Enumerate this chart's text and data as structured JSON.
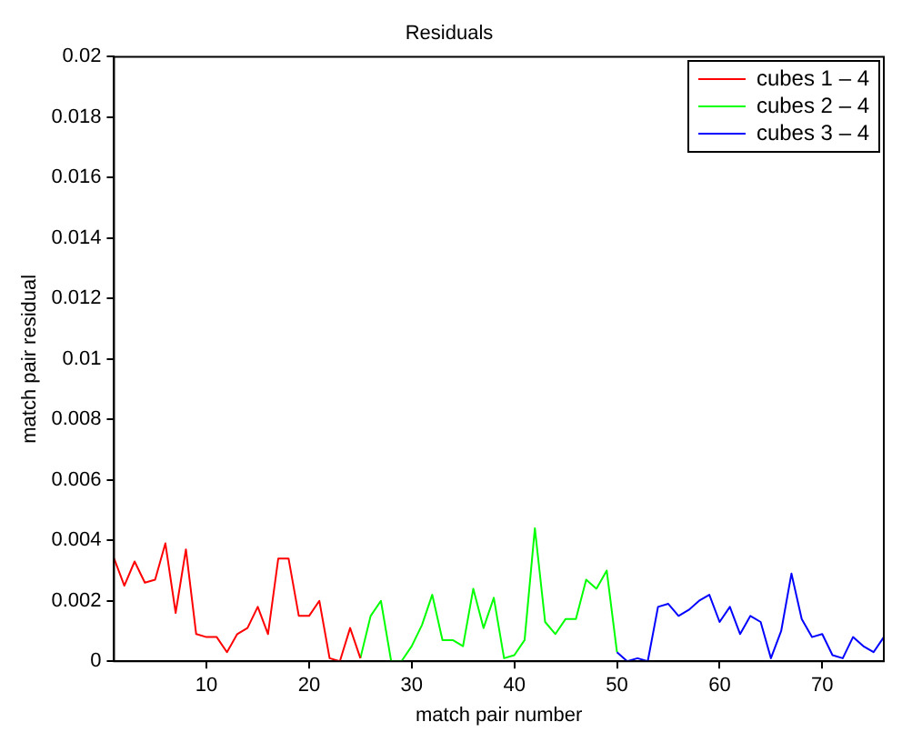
{
  "chart_data": {
    "type": "line",
    "title": "Residuals",
    "xlabel": "match pair number",
    "ylabel": "match pair residual",
    "xlim": [
      1,
      76
    ],
    "xticks": [
      10,
      20,
      30,
      40,
      50,
      60,
      70
    ],
    "ylim": [
      0,
      0.02
    ],
    "yticks": [
      0,
      0.002,
      0.004,
      0.006,
      0.008,
      0.01,
      0.012,
      0.014,
      0.016,
      0.018,
      0.02
    ],
    "grid": false,
    "legend": "top right",
    "marker": "none",
    "line_style": "solid",
    "series": [
      {
        "name": "cubes 1 – 4",
        "color": "#ff0000",
        "x": [
          1,
          2,
          3,
          4,
          5,
          6,
          7,
          8,
          9,
          10,
          11,
          12,
          13,
          14,
          15,
          16,
          17,
          18,
          19,
          20,
          21,
          22,
          23,
          24,
          25
        ],
        "values": [
          0.0034,
          0.0025,
          0.0033,
          0.0026,
          0.0027,
          0.0039,
          0.0016,
          0.0037,
          0.0009,
          0.0008,
          0.0008,
          0.0003,
          0.0009,
          0.0011,
          0.0018,
          0.0009,
          0.0034,
          0.0034,
          0.0015,
          0.0015,
          0.002,
          0.0001,
          0,
          0.0011,
          0.0001
        ]
      },
      {
        "name": "cubes 2 – 4",
        "color": "#00ff00",
        "x": [
          25,
          26,
          27,
          28,
          29,
          30,
          31,
          32,
          33,
          34,
          35,
          36,
          37,
          38,
          39,
          40,
          41,
          42,
          43,
          44,
          45,
          46,
          47,
          48,
          49,
          50
        ],
        "values": [
          0.0001,
          0.0015,
          0.002,
          0,
          0,
          0.0005,
          0.0012,
          0.0022,
          0.0007,
          0.0007,
          0.0005,
          0.0024,
          0.0011,
          0.0021,
          0.0001,
          0.0002,
          0.0007,
          0.0044,
          0.0013,
          0.0009,
          0.0014,
          0.0014,
          0.0027,
          0.0024,
          0.003,
          0.0003
        ]
      },
      {
        "name": "cubes 3 – 4",
        "color": "#0000ff",
        "x": [
          50,
          51,
          52,
          53,
          54,
          55,
          56,
          57,
          58,
          59,
          60,
          61,
          62,
          63,
          64,
          65,
          66,
          67,
          68,
          69,
          70,
          71,
          72,
          73,
          74,
          75,
          76
        ],
        "values": [
          0.0003,
          0,
          0.0001,
          0,
          0.0018,
          0.0019,
          0.0015,
          0.0017,
          0.002,
          0.0022,
          0.0013,
          0.0018,
          0.0009,
          0.0015,
          0.0013,
          0.0001,
          0.001,
          0.0029,
          0.0014,
          0.0008,
          0.0009,
          0.0002,
          0.0001,
          0.0008,
          0.0005,
          0.0003,
          0.0008
        ]
      }
    ]
  }
}
